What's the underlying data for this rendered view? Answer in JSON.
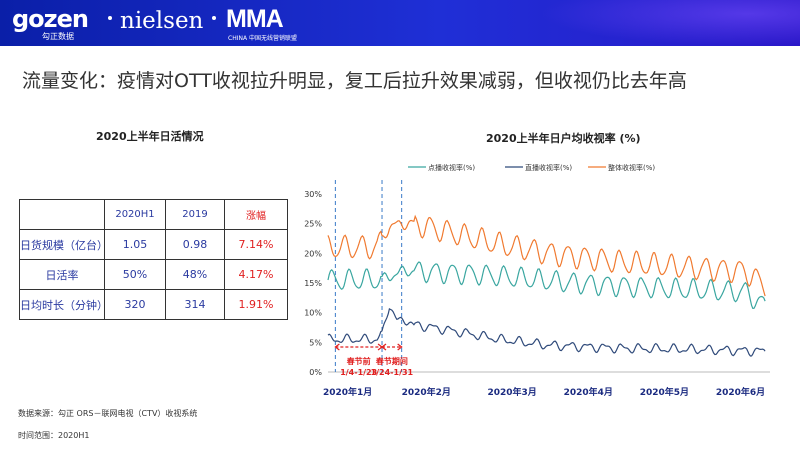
{
  "header": {
    "logo_gozen": "gozen",
    "logo_gozen_sub": "勾正数据",
    "logo_nielsen": "nielsen",
    "logo_mma": "MMA",
    "logo_mma_sub": "CHINA 中国无线营销联盟",
    "colors": {
      "bg_start": "#0a1fa8",
      "bg_end": "#2b18c9"
    }
  },
  "headline": "流量变化：疫情对OTT收视拉升明显，复工后拉升效果减弱，但收视仍比去年高",
  "table": {
    "title": "2020上半年日活情况",
    "columns": [
      "",
      "2020H1",
      "2019",
      "涨幅"
    ],
    "rows": [
      {
        "label": "日货规模（亿台）",
        "v2020": "1.05",
        "v2019": "0.98",
        "growth": "7.14%"
      },
      {
        "label": "日活率",
        "v2020": "50%",
        "v2019": "48%",
        "growth": "4.17%"
      },
      {
        "label": "日均时长（分钟）",
        "v2020": "320",
        "v2019": "314",
        "growth": "1.91%"
      }
    ]
  },
  "footnotes": {
    "source": "数据来源：勾正 ORS－联网电视（CTV）收视系统",
    "period": "时间范围：2020H1"
  },
  "chart_data": {
    "type": "line",
    "title": "2020上半年日户均收视率  (%)",
    "ylim": [
      0,
      30
    ],
    "yticks": [
      "0%",
      "5%",
      "10%",
      "15%",
      "20%",
      "25%",
      "30%"
    ],
    "xticks": [
      "2020年1月",
      "2020年2月",
      "2020年3月",
      "2020年4月",
      "2020年5月",
      "2020年6月"
    ],
    "legend_position": "top",
    "grid": false,
    "annotations": [
      {
        "label": "春节前",
        "range": "1/4-1/23",
        "color": "#e02020"
      },
      {
        "label": "春节期间",
        "range": "1/24-1/31",
        "color": "#e02020"
      }
    ],
    "series": [
      {
        "name": "点播收视率(%)",
        "color": "#3aa6a0",
        "anchors": [
          [
            0,
            15.5
          ],
          [
            20,
            15.5
          ],
          [
            25,
            16
          ],
          [
            30,
            17
          ],
          [
            35,
            17
          ],
          [
            60,
            16.5
          ],
          [
            100,
            15
          ],
          [
            140,
            14
          ],
          [
            170,
            13.5
          ],
          [
            178,
            11
          ]
        ],
        "weekly_amp": 1.6
      },
      {
        "name": "直播收视率(%)",
        "color": "#2f4a7a",
        "anchors": [
          [
            0,
            5.5
          ],
          [
            20,
            5.5
          ],
          [
            22,
            6.5
          ],
          [
            25,
            11
          ],
          [
            28,
            9
          ],
          [
            35,
            8
          ],
          [
            50,
            7
          ],
          [
            70,
            5.5
          ],
          [
            90,
            4.5
          ],
          [
            120,
            4
          ],
          [
            150,
            3.8
          ],
          [
            178,
            3.5
          ]
        ],
        "weekly_amp": 0.6
      },
      {
        "name": "整体收视率(%)",
        "color": "#f07a30",
        "anchors": [
          [
            0,
            21
          ],
          [
            20,
            21
          ],
          [
            25,
            24.5
          ],
          [
            30,
            25
          ],
          [
            35,
            25
          ],
          [
            50,
            23.5
          ],
          [
            70,
            21.5
          ],
          [
            90,
            20
          ],
          [
            120,
            18.5
          ],
          [
            150,
            17.5
          ],
          [
            170,
            17
          ],
          [
            178,
            14.5
          ]
        ],
        "weekly_amp": 1.8
      }
    ]
  }
}
